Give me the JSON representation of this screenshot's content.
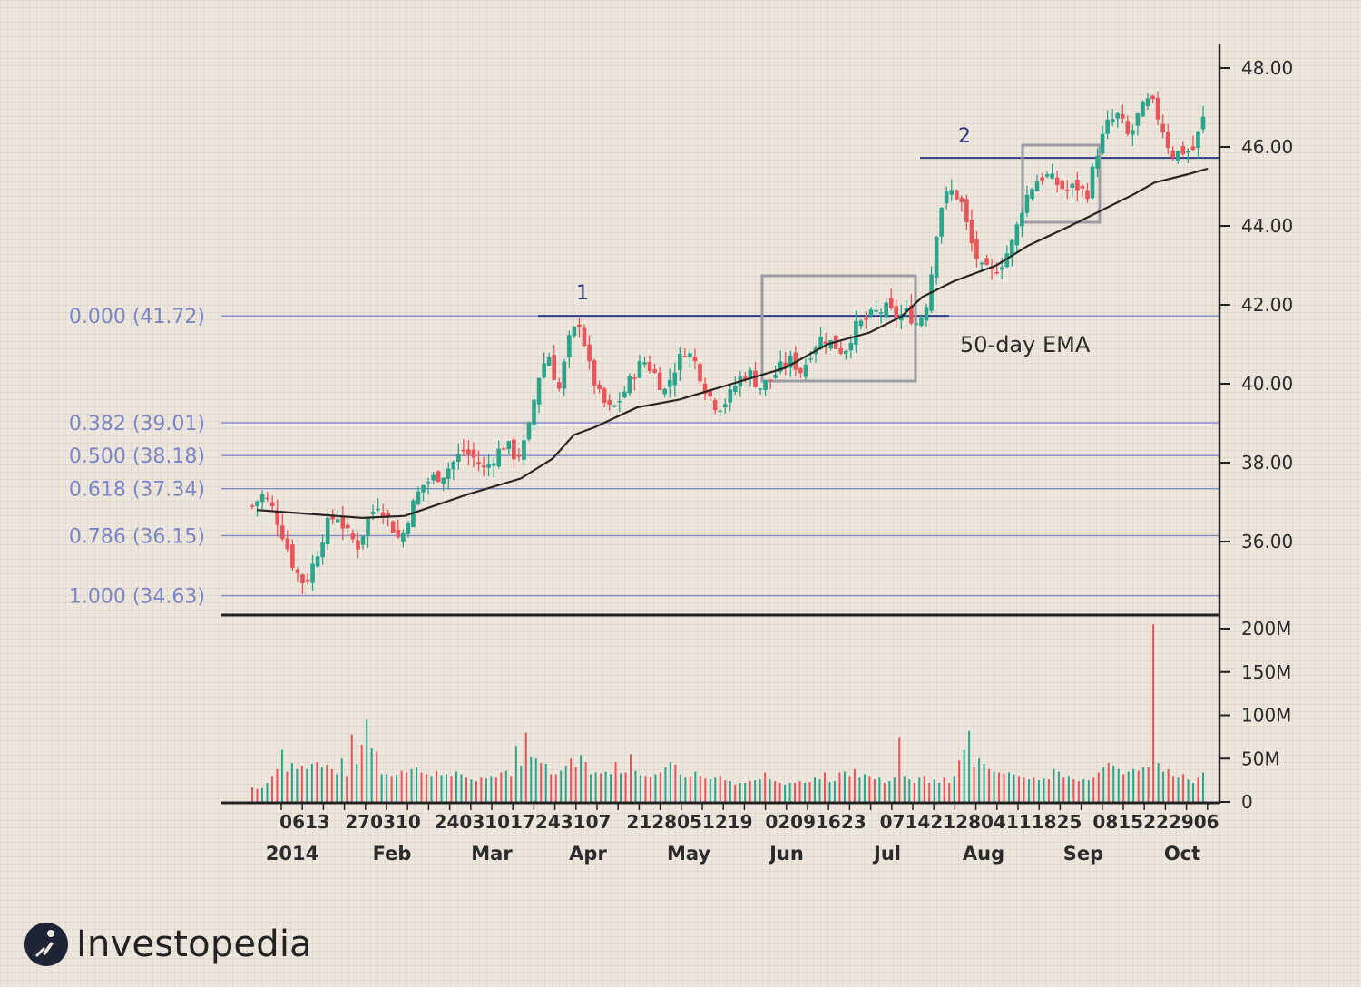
{
  "chart_data": {
    "type": "candlestick",
    "price_axis": {
      "ticks": [
        "48.00",
        "46.00",
        "44.00",
        "42.00",
        "40.00",
        "38.00",
        "36.00"
      ],
      "values": [
        48,
        46,
        44,
        42,
        40,
        38,
        36
      ]
    },
    "volume_axis": {
      "ticks": [
        "200M",
        "150M",
        "100M",
        "50M",
        "0"
      ],
      "values": [
        200,
        150,
        100,
        50,
        0
      ]
    },
    "fibonacci_levels": [
      {
        "label": "0.000 (41.72)",
        "price": 41.72
      },
      {
        "label": "0.382 (39.01)",
        "price": 39.01
      },
      {
        "label": "0.500 (38.18)",
        "price": 38.18
      },
      {
        "label": "0.618 (37.34)",
        "price": 37.34
      },
      {
        "label": "0.786 (36.15)",
        "price": 36.15
      },
      {
        "label": "1.000 (34.63)",
        "price": 34.63
      }
    ],
    "date_labels": [
      "0613",
      "270310",
      "24031017243107",
      "2128051219",
      "02091623",
      "0714212804111825",
      "0815222906"
    ],
    "month_labels": [
      "2014",
      "Feb",
      "Mar",
      "Apr",
      "May",
      "Jun",
      "Jul",
      "Aug",
      "Sep",
      "Oct"
    ],
    "annotations": {
      "resistance_1": "1",
      "resistance_2": "2",
      "ema": "50-day EMA"
    },
    "resistance_1_price": 41.72,
    "resistance_2_price": 45.72,
    "anchors": [
      36.9,
      37.2,
      36.8,
      36.1,
      35.3,
      34.9,
      35.6,
      36.4,
      36.7,
      36.2,
      35.9,
      36.6,
      37.0,
      36.5,
      36.0,
      36.8,
      37.4,
      37.6,
      37.7,
      38.0,
      38.3,
      38.1,
      37.8,
      38.2,
      38.5,
      38.1,
      38.6,
      40.1,
      40.8,
      39.8,
      41.1,
      41.6,
      40.3,
      39.6,
      39.3,
      39.7,
      40.2,
      40.6,
      40.3,
      39.8,
      40.4,
      40.9,
      40.5,
      39.8,
      39.4,
      39.6,
      40.1,
      40.3,
      39.9,
      40.1,
      40.4,
      40.6,
      40.3,
      40.9,
      41.2,
      41.0,
      40.8,
      41.4,
      41.6,
      41.8,
      41.9,
      41.7,
      41.8,
      41.5,
      42.2,
      44.4,
      44.9,
      44.7,
      43.6,
      42.9,
      42.8,
      43.1,
      43.6,
      44.6,
      45.1,
      45.3,
      45.1,
      44.9,
      45.0,
      44.8,
      45.9,
      46.6,
      46.8,
      46.2,
      46.9,
      47.2,
      46.6,
      45.8,
      45.9,
      45.9,
      46.7
    ],
    "ema": [
      [
        0,
        36.8
      ],
      [
        5,
        36.7
      ],
      [
        10,
        36.6
      ],
      [
        14,
        36.65
      ],
      [
        20,
        37.2
      ],
      [
        25,
        37.6
      ],
      [
        28,
        38.1
      ],
      [
        30,
        38.7
      ],
      [
        32,
        38.9
      ],
      [
        36,
        39.4
      ],
      [
        40,
        39.6
      ],
      [
        45,
        40.0
      ],
      [
        50,
        40.4
      ],
      [
        54,
        41.0
      ],
      [
        58,
        41.3
      ],
      [
        61,
        41.7
      ],
      [
        63,
        42.2
      ],
      [
        66,
        42.6
      ],
      [
        70,
        43.0
      ],
      [
        73,
        43.5
      ],
      [
        77,
        44.0
      ],
      [
        80,
        44.4
      ],
      [
        83,
        44.8
      ],
      [
        85,
        45.1
      ],
      [
        88,
        45.3
      ],
      [
        90,
        45.45
      ]
    ],
    "volume": [
      17,
      15,
      16,
      22,
      30,
      38,
      60,
      35,
      45,
      38,
      42,
      38,
      44,
      46,
      40,
      43,
      38,
      32,
      50,
      30,
      78,
      44,
      66,
      95,
      62,
      58,
      32,
      32,
      30,
      32,
      36,
      34,
      38,
      40,
      34,
      32,
      30,
      36,
      31,
      32,
      30,
      35,
      32,
      28,
      26,
      24,
      28,
      27,
      30,
      28,
      34,
      36,
      30,
      65,
      42,
      80,
      52,
      50,
      45,
      44,
      32,
      32,
      36,
      42,
      50,
      40,
      54,
      46,
      32,
      34,
      33,
      35,
      32,
      46,
      33,
      34,
      55,
      36,
      31,
      30,
      29,
      32,
      34,
      40,
      46,
      43,
      32,
      28,
      30,
      35,
      30,
      27,
      26,
      28,
      30,
      25,
      24,
      20,
      22,
      22,
      24,
      25,
      26,
      34,
      26,
      24,
      22,
      20,
      22,
      22,
      24,
      22,
      23,
      28,
      26,
      34,
      23,
      24,
      34,
      35,
      30,
      38,
      28,
      32,
      30,
      26,
      28,
      22,
      24,
      28,
      75,
      30,
      26,
      22,
      28,
      30,
      22,
      26,
      22,
      28,
      22,
      30,
      48,
      60,
      82,
      40,
      50,
      44,
      38,
      35,
      34,
      33,
      34,
      32,
      30,
      28,
      26,
      28,
      25,
      27,
      26,
      38,
      35,
      28,
      30,
      26,
      24,
      26,
      25,
      28,
      34,
      40,
      45,
      42,
      38,
      32,
      35,
      38,
      36,
      40,
      40,
      205,
      45,
      35,
      38,
      30,
      28,
      32,
      26,
      22,
      28,
      34
    ]
  }
}
